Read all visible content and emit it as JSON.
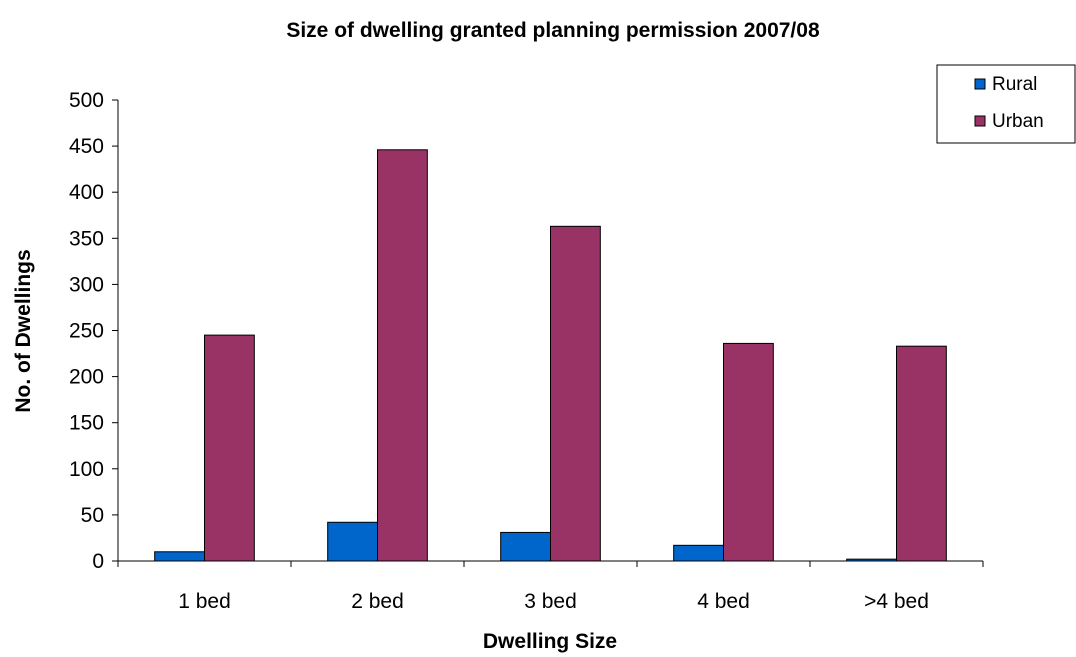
{
  "chart_data": {
    "type": "bar",
    "title": "Size of dwelling granted planning permission 2007/08",
    "xlabel": "Dwelling Size",
    "ylabel": "No. of Dwellings",
    "categories": [
      "1 bed",
      "2 bed",
      "3 bed",
      "4 bed",
      ">4 bed"
    ],
    "series": [
      {
        "name": "Rural",
        "color": "#0066CC",
        "values": [
          10,
          42,
          31,
          17,
          2
        ]
      },
      {
        "name": "Urban",
        "color": "#993366",
        "values": [
          245,
          446,
          363,
          236,
          233
        ]
      }
    ],
    "ylim": [
      0,
      500
    ],
    "yticks": [
      "0",
      "50",
      "100",
      "150",
      "200",
      "250",
      "300",
      "350",
      "400",
      "450",
      "500"
    ],
    "grid": false,
    "legend_position": "top-right"
  }
}
